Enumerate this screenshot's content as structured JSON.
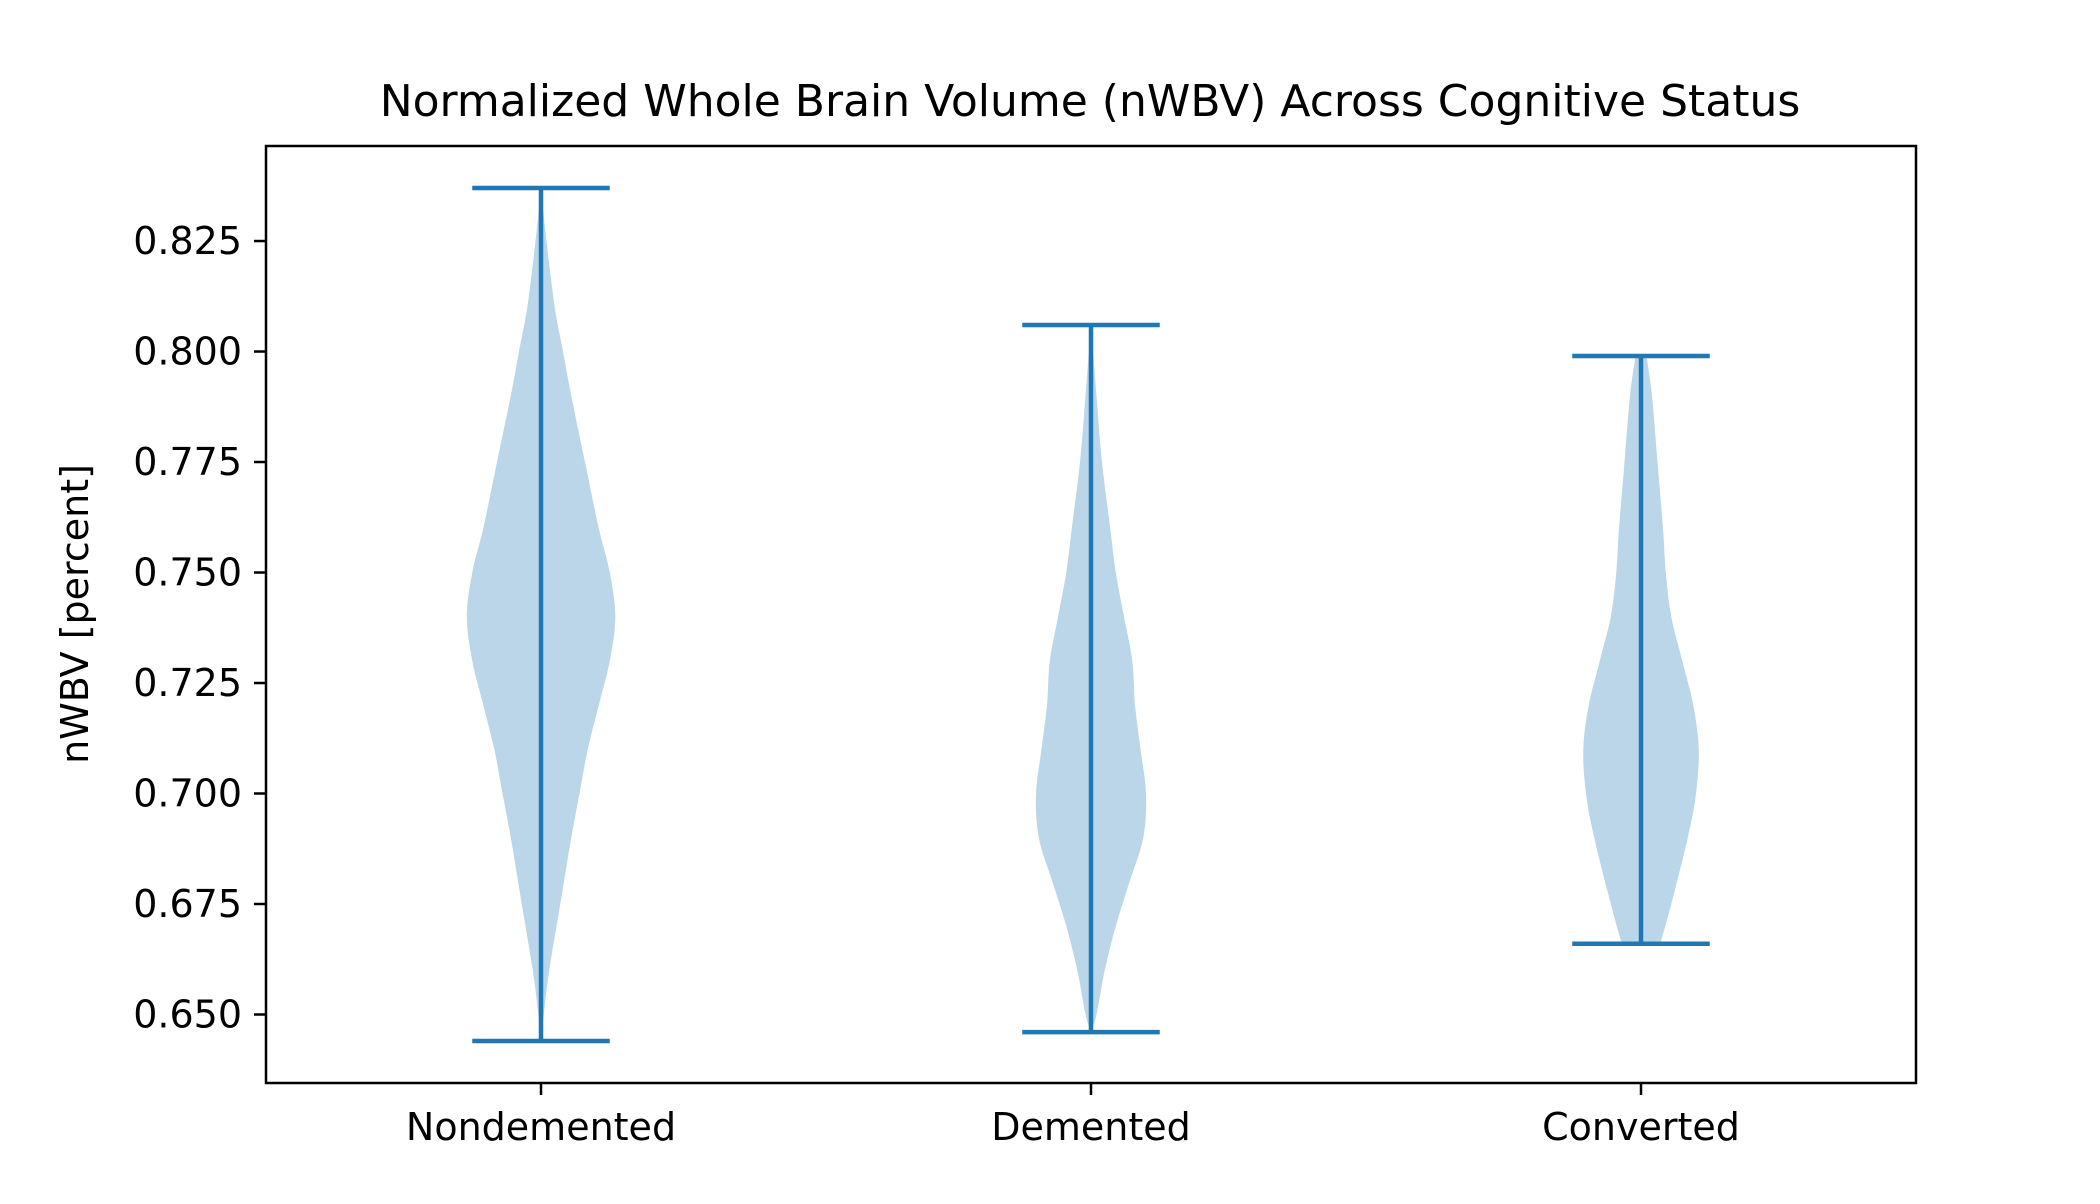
{
  "chart_data": {
    "type": "violin",
    "title": "Normalized Whole Brain Volume (nWBV) Across Cognitive Status",
    "xlabel": "",
    "ylabel": "nWBV [percent]",
    "categories": [
      "Nondemented",
      "Demented",
      "Converted"
    ],
    "ylim": [
      0.6345,
      0.8465
    ],
    "yticks": [
      0.65,
      0.675,
      0.7,
      0.725,
      0.75,
      0.775,
      0.8,
      0.825
    ],
    "ytick_labels": [
      "0.650",
      "0.675",
      "0.700",
      "0.725",
      "0.750",
      "0.775",
      "0.800",
      "0.825"
    ],
    "grid": false,
    "colors": {
      "body_fill": "#1f77b4",
      "body_opacity": 0.3,
      "lines": "#1f77b4"
    },
    "violins": [
      {
        "category": "Nondemented",
        "min": 0.644,
        "max": 0.837,
        "density": [
          [
            0.644,
            0.0
          ],
          [
            0.65,
            0.01
          ],
          [
            0.66,
            0.03
          ],
          [
            0.675,
            0.07
          ],
          [
            0.69,
            0.11
          ],
          [
            0.7,
            0.14
          ],
          [
            0.71,
            0.17
          ],
          [
            0.72,
            0.21
          ],
          [
            0.73,
            0.25
          ],
          [
            0.74,
            0.27
          ],
          [
            0.75,
            0.25
          ],
          [
            0.76,
            0.21
          ],
          [
            0.775,
            0.16
          ],
          [
            0.79,
            0.11
          ],
          [
            0.8,
            0.08
          ],
          [
            0.81,
            0.05
          ],
          [
            0.825,
            0.02
          ],
          [
            0.837,
            0.0
          ]
        ]
      },
      {
        "category": "Demented",
        "min": 0.646,
        "max": 0.806,
        "density": [
          [
            0.646,
            0.0
          ],
          [
            0.65,
            0.02
          ],
          [
            0.66,
            0.05
          ],
          [
            0.67,
            0.09
          ],
          [
            0.68,
            0.14
          ],
          [
            0.69,
            0.19
          ],
          [
            0.7,
            0.2
          ],
          [
            0.71,
            0.18
          ],
          [
            0.72,
            0.16
          ],
          [
            0.73,
            0.15
          ],
          [
            0.74,
            0.12
          ],
          [
            0.75,
            0.09
          ],
          [
            0.76,
            0.07
          ],
          [
            0.775,
            0.04
          ],
          [
            0.79,
            0.02
          ],
          [
            0.806,
            0.0
          ]
        ]
      },
      {
        "category": "Converted",
        "min": 0.666,
        "max": 0.799,
        "density": [
          [
            0.666,
            0.07
          ],
          [
            0.675,
            0.11
          ],
          [
            0.69,
            0.17
          ],
          [
            0.7,
            0.2
          ],
          [
            0.71,
            0.21
          ],
          [
            0.72,
            0.19
          ],
          [
            0.73,
            0.15
          ],
          [
            0.74,
            0.11
          ],
          [
            0.75,
            0.09
          ],
          [
            0.76,
            0.08
          ],
          [
            0.775,
            0.06
          ],
          [
            0.79,
            0.04
          ],
          [
            0.799,
            0.02
          ]
        ]
      }
    ]
  }
}
